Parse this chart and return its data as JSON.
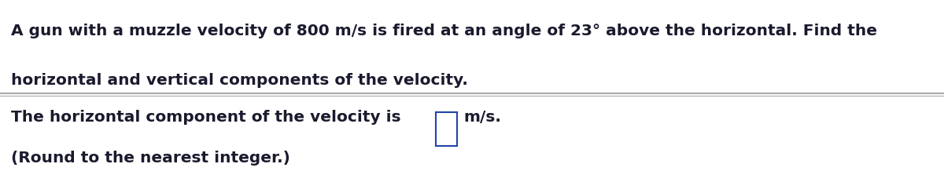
{
  "bg_top": "#c8c4b4",
  "bg_bottom": "#ccc8b8",
  "text_color": "#1a1a2e",
  "divider_color": "#aaaaaa",
  "box_border_color": "#2244aa",
  "box_fill_color": "#ffffff",
  "line1": "A gun with a muzzle velocity of 800 m/s is fired at an angle of 23° above the horizontal. Find the",
  "line2": "horizontal and vertical components of the velocity.",
  "line3_pre": "The horizontal component of the velocity is",
  "line3_suf": "m/s.",
  "line4": "(Round to the nearest integer.)",
  "font_size": 14.5,
  "figwidth": 12.0,
  "figheight": 2.46,
  "dpi": 100
}
